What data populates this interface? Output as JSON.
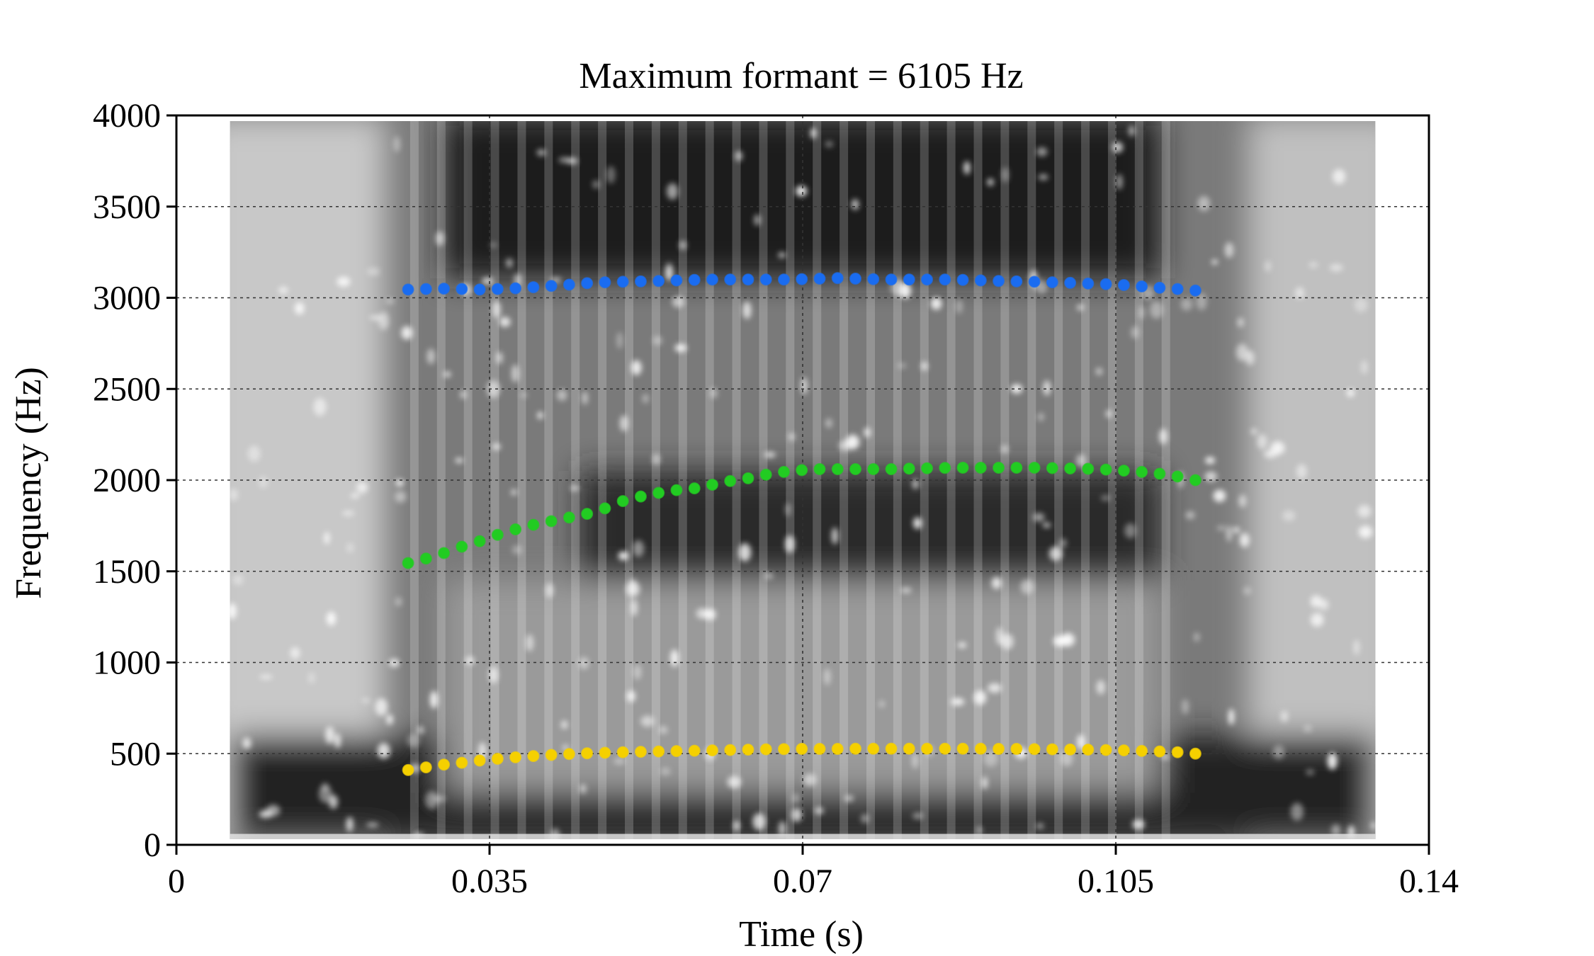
{
  "chart_data": {
    "type": "scatter",
    "title": "Maximum formant = 6105 Hz",
    "xlabel": "Time (s)",
    "ylabel": "Frequency (Hz)",
    "xlim": [
      0,
      0.14
    ],
    "ylim": [
      0,
      4000
    ],
    "x_ticks": [
      "0",
      "0.035",
      "0.07",
      "0.105",
      "0.14"
    ],
    "y_ticks": [
      "0",
      "500",
      "1000",
      "1500",
      "2000",
      "2500",
      "3000",
      "3500",
      "4000"
    ],
    "grid": true,
    "background": "spectrogram",
    "spectrogram_time_range": [
      0.006,
      0.134
    ],
    "series": [
      {
        "color": "#f5d000",
        "x": [
          0.0259,
          0.0279,
          0.0299,
          0.0319,
          0.0339,
          0.0359,
          0.0379,
          0.0399,
          0.0419,
          0.0439,
          0.0459,
          0.0479,
          0.0499,
          0.0519,
          0.0539,
          0.0559,
          0.0579,
          0.0599,
          0.0619,
          0.0639,
          0.0659,
          0.0679,
          0.0699,
          0.0719,
          0.0739,
          0.0759,
          0.0779,
          0.0799,
          0.0819,
          0.0839,
          0.0859,
          0.0879,
          0.0899,
          0.0919,
          0.0939,
          0.0959,
          0.0979,
          0.0999,
          0.1019,
          0.1039,
          0.1059,
          0.1079,
          0.1099,
          0.1119,
          0.1139
        ],
        "y": [
          410,
          425,
          440,
          450,
          462,
          472,
          480,
          487,
          493,
          498,
          502,
          505,
          508,
          510,
          512,
          514,
          516,
          518,
          520,
          522,
          524,
          525,
          526,
          526,
          526,
          527,
          527,
          527,
          527,
          527,
          527,
          527,
          527,
          526,
          526,
          525,
          524,
          523,
          522,
          520,
          518,
          515,
          512,
          508,
          500
        ]
      },
      {
        "color": "#22cc22",
        "x": [
          0.0259,
          0.0279,
          0.0299,
          0.0319,
          0.0339,
          0.0359,
          0.0379,
          0.0399,
          0.0419,
          0.0439,
          0.0459,
          0.0479,
          0.0499,
          0.0519,
          0.0539,
          0.0559,
          0.0579,
          0.0599,
          0.0619,
          0.0639,
          0.0659,
          0.0679,
          0.0699,
          0.0719,
          0.0739,
          0.0759,
          0.0779,
          0.0799,
          0.0819,
          0.0839,
          0.0859,
          0.0879,
          0.0899,
          0.0919,
          0.0939,
          0.0959,
          0.0979,
          0.0999,
          0.1019,
          0.1039,
          0.1059,
          0.1079,
          0.1099,
          0.1119,
          0.1139
        ],
        "y": [
          1545,
          1570,
          1600,
          1635,
          1665,
          1700,
          1730,
          1755,
          1775,
          1795,
          1815,
          1845,
          1885,
          1910,
          1930,
          1945,
          1955,
          1975,
          1995,
          2010,
          2030,
          2045,
          2055,
          2060,
          2060,
          2060,
          2060,
          2060,
          2063,
          2065,
          2067,
          2068,
          2068,
          2068,
          2068,
          2068,
          2066,
          2064,
          2062,
          2058,
          2052,
          2045,
          2035,
          2020,
          2000
        ]
      },
      {
        "color": "#1a6cf0",
        "x": [
          0.0259,
          0.0279,
          0.0299,
          0.0319,
          0.0339,
          0.0359,
          0.0379,
          0.0399,
          0.0419,
          0.0439,
          0.0459,
          0.0479,
          0.0499,
          0.0519,
          0.0539,
          0.0559,
          0.0579,
          0.0599,
          0.0619,
          0.0639,
          0.0659,
          0.0679,
          0.0699,
          0.0719,
          0.0739,
          0.0759,
          0.0779,
          0.0799,
          0.0819,
          0.0839,
          0.0859,
          0.0879,
          0.0899,
          0.0919,
          0.0939,
          0.0959,
          0.0979,
          0.0999,
          0.1019,
          0.1039,
          0.1059,
          0.1079,
          0.1099,
          0.1119,
          0.1139
        ],
        "y": [
          3045,
          3048,
          3050,
          3048,
          3045,
          3048,
          3052,
          3058,
          3065,
          3072,
          3080,
          3085,
          3088,
          3090,
          3092,
          3095,
          3098,
          3100,
          3100,
          3100,
          3100,
          3100,
          3102,
          3105,
          3108,
          3105,
          3102,
          3100,
          3100,
          3100,
          3100,
          3098,
          3095,
          3092,
          3090,
          3088,
          3085,
          3082,
          3078,
          3075,
          3070,
          3062,
          3055,
          3048,
          3040
        ]
      }
    ]
  }
}
